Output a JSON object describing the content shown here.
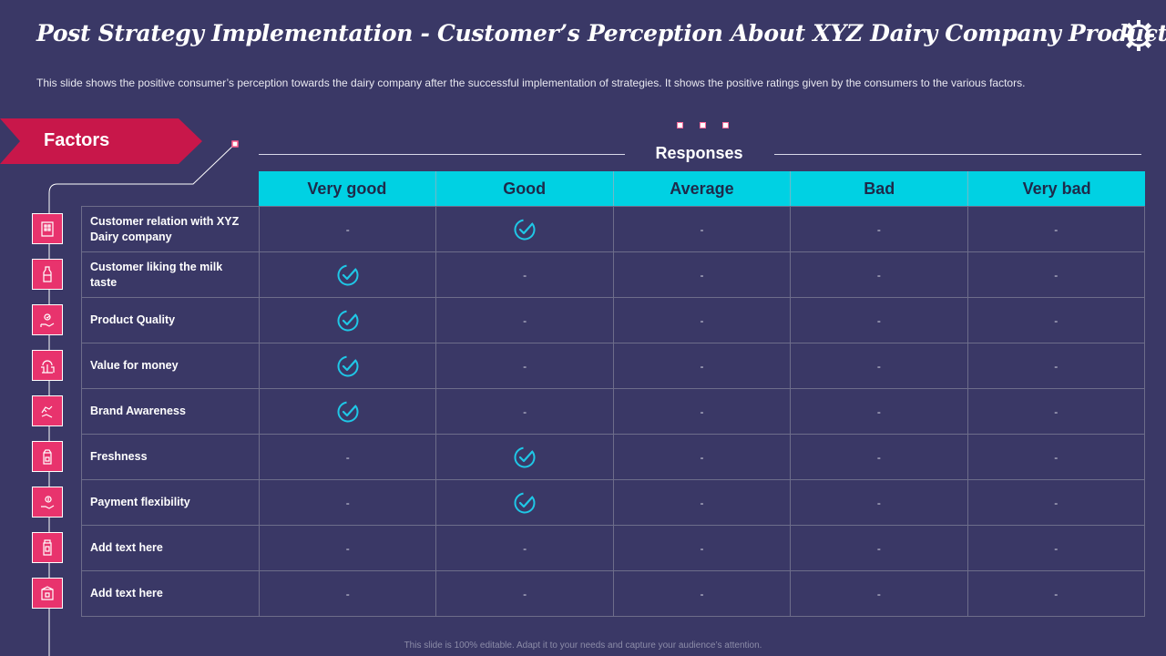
{
  "slide": {
    "title": "Post Strategy Implementation - Customer’s Perception About XYZ Dairy Company Products",
    "subtitle": "This slide shows the positive consumer’s perception towards the dairy company after the successful implementation of strategies. It shows the positive ratings given by the consumers to the various factors.",
    "factors_label": "Factors",
    "responses_label": "Responses",
    "footer": "This slide is 100% editable. Adapt it to your needs and capture your audience’s attention."
  },
  "table": {
    "columns": [
      "Very good",
      "Good",
      "Average",
      "Bad",
      "Very bad"
    ],
    "rows": [
      {
        "factor": "Customer relation with XYZ Dairy company",
        "icon": "building-icon",
        "cells": [
          "-",
          "check",
          "-",
          "-",
          "-"
        ]
      },
      {
        "factor": "Customer liking the milk taste",
        "icon": "milk-bottle-icon",
        "cells": [
          "check",
          "-",
          "-",
          "-",
          "-"
        ]
      },
      {
        "factor": "Product Quality",
        "icon": "quality-hand-icon",
        "cells": [
          "check",
          "-",
          "-",
          "-",
          "-"
        ]
      },
      {
        "factor": "Value for money",
        "icon": "money-tree-icon",
        "cells": [
          "check",
          "-",
          "-",
          "-",
          "-"
        ]
      },
      {
        "factor": "Brand Awareness",
        "icon": "brand-hand-icon",
        "cells": [
          "check",
          "-",
          "-",
          "-",
          "-"
        ]
      },
      {
        "factor": "Freshness",
        "icon": "milk-carton-icon",
        "cells": [
          "-",
          "check",
          "-",
          "-",
          "-"
        ]
      },
      {
        "factor": "Payment flexibility",
        "icon": "payment-hand-icon",
        "cells": [
          "-",
          "check",
          "-",
          "-",
          "-"
        ]
      },
      {
        "factor": "Add text here",
        "icon": "bottle-icon",
        "cells": [
          "-",
          "-",
          "-",
          "-",
          "-"
        ]
      },
      {
        "factor": "Add text here",
        "icon": "package-icon",
        "cells": [
          "-",
          "-",
          "-",
          "-",
          "-"
        ]
      }
    ]
  },
  "colors": {
    "background": "#3a3866",
    "accent_pink": "#c8174a",
    "icon_pink": "#e8336d",
    "header_cyan": "#00d1e3",
    "check_cyan": "#1fc7e6"
  }
}
